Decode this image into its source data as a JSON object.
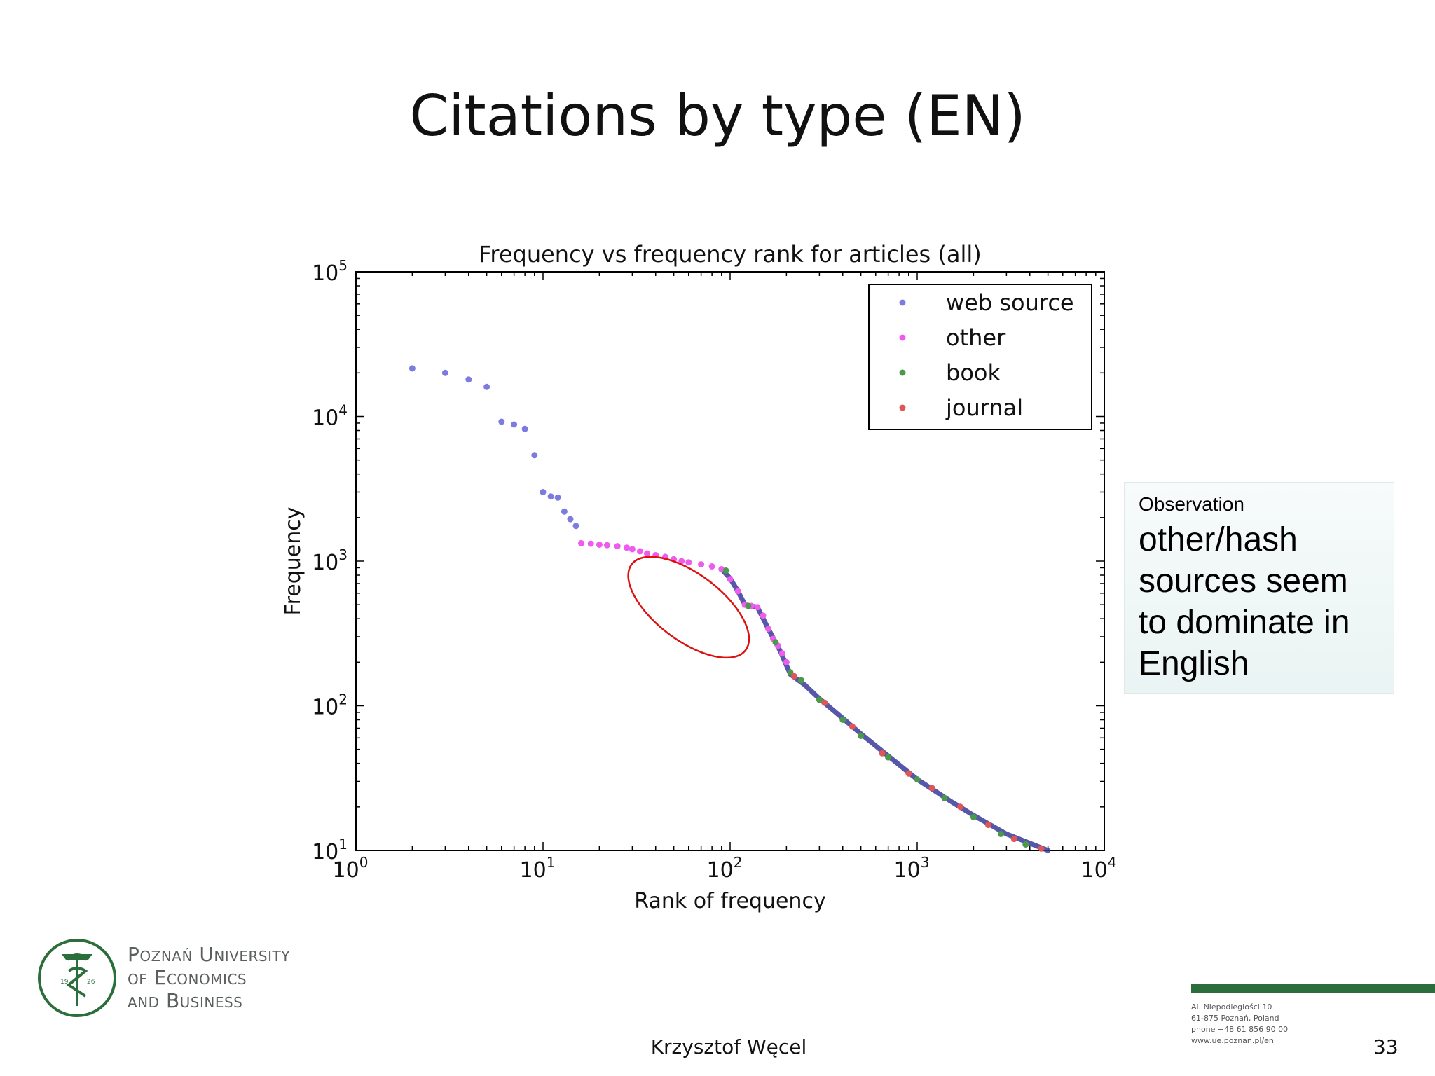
{
  "slide": {
    "title": "Citations by type (EN)",
    "author": "Krzysztof Węcel",
    "page_number": "33"
  },
  "observation": {
    "label": "Observation",
    "text_lines": [
      "other/hash",
      "sources seem",
      "to dominate in",
      "English"
    ]
  },
  "university": {
    "name_lines": [
      "Poznań University",
      "of Economics",
      "and Business"
    ],
    "seal_year_left": "19",
    "seal_year_right": "26",
    "address_lines": [
      "Al. Niepodległości 10",
      "61-875 Poznań, Poland",
      "phone +48 61 856 90 00",
      "www.ue.poznan.pl/en"
    ]
  },
  "colors": {
    "web_source": "#7b7be0",
    "other": "#ee5cee",
    "book": "#4a9a4a",
    "journal": "#e05555",
    "annotation": "#dd1111",
    "brand_green": "#2c6e3b"
  },
  "chart_data": {
    "type": "scatter",
    "title": "Frequency vs frequency rank for articles (all)",
    "xlabel": "Rank of frequency",
    "ylabel": "Frequency",
    "xscale": "log",
    "yscale": "log",
    "xlim": [
      1,
      10000
    ],
    "ylim": [
      10,
      100000
    ],
    "x_tick_labels": [
      {
        "base": "10",
        "exp": "0"
      },
      {
        "base": "10",
        "exp": "1"
      },
      {
        "base": "10",
        "exp": "2"
      },
      {
        "base": "10",
        "exp": "3"
      },
      {
        "base": "10",
        "exp": "4"
      }
    ],
    "y_tick_labels": [
      {
        "base": "10",
        "exp": "1"
      },
      {
        "base": "10",
        "exp": "2"
      },
      {
        "base": "10",
        "exp": "3"
      },
      {
        "base": "10",
        "exp": "4"
      },
      {
        "base": "10",
        "exp": "5"
      }
    ],
    "legend_position": "top-right",
    "grid": false,
    "series": [
      {
        "name": "web source",
        "color": "#7b7be0",
        "points": [
          [
            2,
            21500
          ],
          [
            3,
            20000
          ],
          [
            4,
            18000
          ],
          [
            5,
            16000
          ],
          [
            6,
            9200
          ],
          [
            7,
            8800
          ],
          [
            8,
            8200
          ],
          [
            9,
            5400
          ],
          [
            10,
            3000
          ],
          [
            11,
            2800
          ],
          [
            12,
            2750
          ],
          [
            13,
            2200
          ],
          [
            14,
            1950
          ],
          [
            15,
            1750
          ]
        ]
      },
      {
        "name": "other",
        "color": "#ee5cee",
        "points": [
          [
            16,
            1330
          ],
          [
            18,
            1320
          ],
          [
            20,
            1300
          ],
          [
            22,
            1290
          ],
          [
            25,
            1270
          ],
          [
            28,
            1240
          ],
          [
            30,
            1210
          ],
          [
            33,
            1170
          ],
          [
            36,
            1130
          ],
          [
            40,
            1100
          ],
          [
            45,
            1070
          ],
          [
            50,
            1030
          ],
          [
            55,
            1000
          ],
          [
            60,
            980
          ],
          [
            70,
            950
          ],
          [
            80,
            920
          ],
          [
            90,
            880
          ],
          [
            100,
            750
          ],
          [
            110,
            620
          ],
          [
            120,
            500
          ],
          [
            130,
            490
          ],
          [
            140,
            480
          ],
          [
            150,
            420
          ],
          [
            160,
            340
          ],
          [
            170,
            290
          ],
          [
            180,
            260
          ],
          [
            190,
            230
          ],
          [
            200,
            200
          ]
        ]
      },
      {
        "name": "book",
        "color": "#4a9a4a",
        "points": [
          [
            95,
            860
          ],
          [
            125,
            490
          ],
          [
            175,
            275
          ],
          [
            210,
            170
          ],
          [
            240,
            150
          ],
          [
            300,
            110
          ],
          [
            400,
            80
          ],
          [
            500,
            62
          ],
          [
            700,
            44
          ],
          [
            1000,
            31
          ],
          [
            1400,
            23
          ],
          [
            2000,
            17
          ],
          [
            2800,
            13
          ],
          [
            3800,
            11
          ]
        ]
      },
      {
        "name": "journal",
        "color": "#e05555",
        "points": [
          [
            220,
            160
          ],
          [
            320,
            105
          ],
          [
            450,
            72
          ],
          [
            650,
            47
          ],
          [
            900,
            34
          ],
          [
            1200,
            27
          ],
          [
            1700,
            20
          ],
          [
            2400,
            15
          ],
          [
            3300,
            12
          ],
          [
            4600,
            10.3
          ]
        ]
      }
    ],
    "trend": [
      [
        90,
        880
      ],
      [
        100,
        760
      ],
      [
        110,
        620
      ],
      [
        120,
        500
      ],
      [
        140,
        480
      ],
      [
        160,
        340
      ],
      [
        185,
        240
      ],
      [
        210,
        165
      ],
      [
        250,
        140
      ],
      [
        300,
        112
      ],
      [
        400,
        82
      ],
      [
        500,
        64
      ],
      [
        700,
        45
      ],
      [
        1000,
        31
      ],
      [
        1500,
        22
      ],
      [
        2000,
        17.5
      ],
      [
        3000,
        13
      ],
      [
        4000,
        11.2
      ],
      [
        5000,
        10
      ]
    ],
    "annotation": {
      "shape": "ellipse",
      "center": [
        60,
        480
      ],
      "x_range": [
        20,
        190
      ],
      "y_range": [
        180,
        1800
      ]
    }
  }
}
